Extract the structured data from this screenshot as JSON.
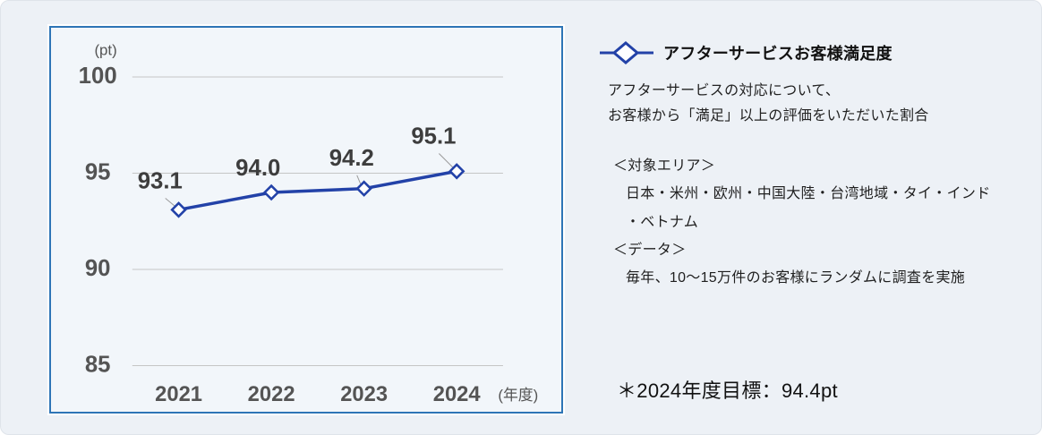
{
  "page": {
    "background": "#edf1f6",
    "panel_border_color": "#2e75b6"
  },
  "chart_data": {
    "type": "line",
    "title": "アフターサービスお客様満足度",
    "categories": [
      "2021",
      "2022",
      "2023",
      "2024"
    ],
    "series": [
      {
        "name": "アフターサービスお客様満足度",
        "values": [
          93.1,
          94.0,
          94.2,
          95.1
        ]
      }
    ],
    "data_labels": [
      "93.1",
      "94.0",
      "94.2",
      "95.1"
    ],
    "ylim": [
      85,
      100
    ],
    "yticks": [
      100,
      95,
      90,
      85
    ],
    "ylabel": "(pt)",
    "xlabel": "(年度)",
    "grid": true,
    "legend_position": "right-top",
    "line_color": "#2342a8",
    "grid_color": "#c5c5c5",
    "marker": "open-diamond"
  },
  "legend": {
    "title": "アフターサービスお客様満足度",
    "marker": "open-diamond",
    "color": "#2342a8"
  },
  "description": {
    "line1": "アフターサービスの対応について、",
    "line2": "お客様から「満足」以上の評価をいただいた割合"
  },
  "details": {
    "area_header": "＜対象エリア＞",
    "area_line1": "日本・米州・欧州・中国大陸・台湾地域・タイ・インド",
    "area_line2": "・ベトナム",
    "data_header": "＜データ＞",
    "data_line": "毎年、10～15万件のお客様にランダムに調査を実施"
  },
  "note": {
    "text": "＊2024年度目標：94.4pt"
  }
}
